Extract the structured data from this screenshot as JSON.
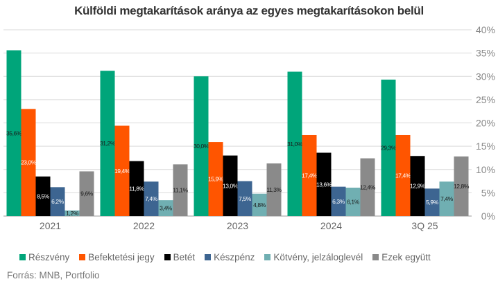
{
  "chart_data": {
    "type": "bar",
    "title": "Külföldi megtakarítások aránya az egyes megtakarításokon belül",
    "categories": [
      "2021",
      "2022",
      "2023",
      "2024",
      "3Q 25"
    ],
    "series": [
      {
        "name": "Részvény",
        "color": "#00a57a",
        "label_color": "#1a1a1a",
        "values": [
          35.6,
          31.2,
          30.0,
          31.0,
          29.3
        ],
        "labels": [
          "35,6%",
          "31,2%",
          "30,0%",
          "31,0%",
          "29,3%"
        ]
      },
      {
        "name": "Befektetési jegy",
        "color": "#ff5500",
        "label_color": "#ffffff",
        "values": [
          23.0,
          19.4,
          15.9,
          17.4,
          17.4
        ],
        "labels": [
          "23,0%",
          "19,4%",
          "15,9%",
          "17,4%",
          "17,4%"
        ]
      },
      {
        "name": "Betét",
        "color": "#000000",
        "label_color": "#ffffff",
        "values": [
          8.5,
          11.8,
          13.0,
          13.6,
          12.9
        ],
        "labels": [
          "8,5%",
          "11,8%",
          "13,0%",
          "13,6%",
          "12,9%"
        ]
      },
      {
        "name": "Készpénz",
        "color": "#3d6591",
        "label_color": "#ffffff",
        "values": [
          6.2,
          7.4,
          7.5,
          6.3,
          5.9
        ],
        "labels": [
          "6,2%",
          "7,4%",
          "7,5%",
          "6,3%",
          "5,9%"
        ]
      },
      {
        "name": "Kötvény, jelzáloglevél",
        "color": "#70afb2",
        "label_color": "#1a1a1a",
        "values": [
          1.2,
          3.4,
          4.8,
          6.1,
          7.4
        ],
        "labels": [
          "1,2%",
          "3,4%",
          "4,8%",
          "6,1%",
          "7,4%"
        ]
      },
      {
        "name": "Ezek együtt",
        "color": "#8a8a8a",
        "label_color": "#1a1a1a",
        "values": [
          9.6,
          11.1,
          11.3,
          12.4,
          12.8
        ],
        "labels": [
          "9,6%",
          "11,1%",
          "11,3%",
          "12,4%",
          "12,8%"
        ]
      }
    ],
    "ylim": [
      0,
      40
    ],
    "yticks": [
      0,
      5,
      10,
      15,
      20,
      25,
      30,
      35,
      40
    ],
    "ytick_labels": [
      "0%",
      "5%",
      "10%",
      "15%",
      "20%",
      "25%",
      "30%",
      "35%",
      "40%"
    ],
    "y_axis_side": "right",
    "grid": true,
    "legend_position": "bottom",
    "source": "Forrás: MNB, Portfolio"
  }
}
